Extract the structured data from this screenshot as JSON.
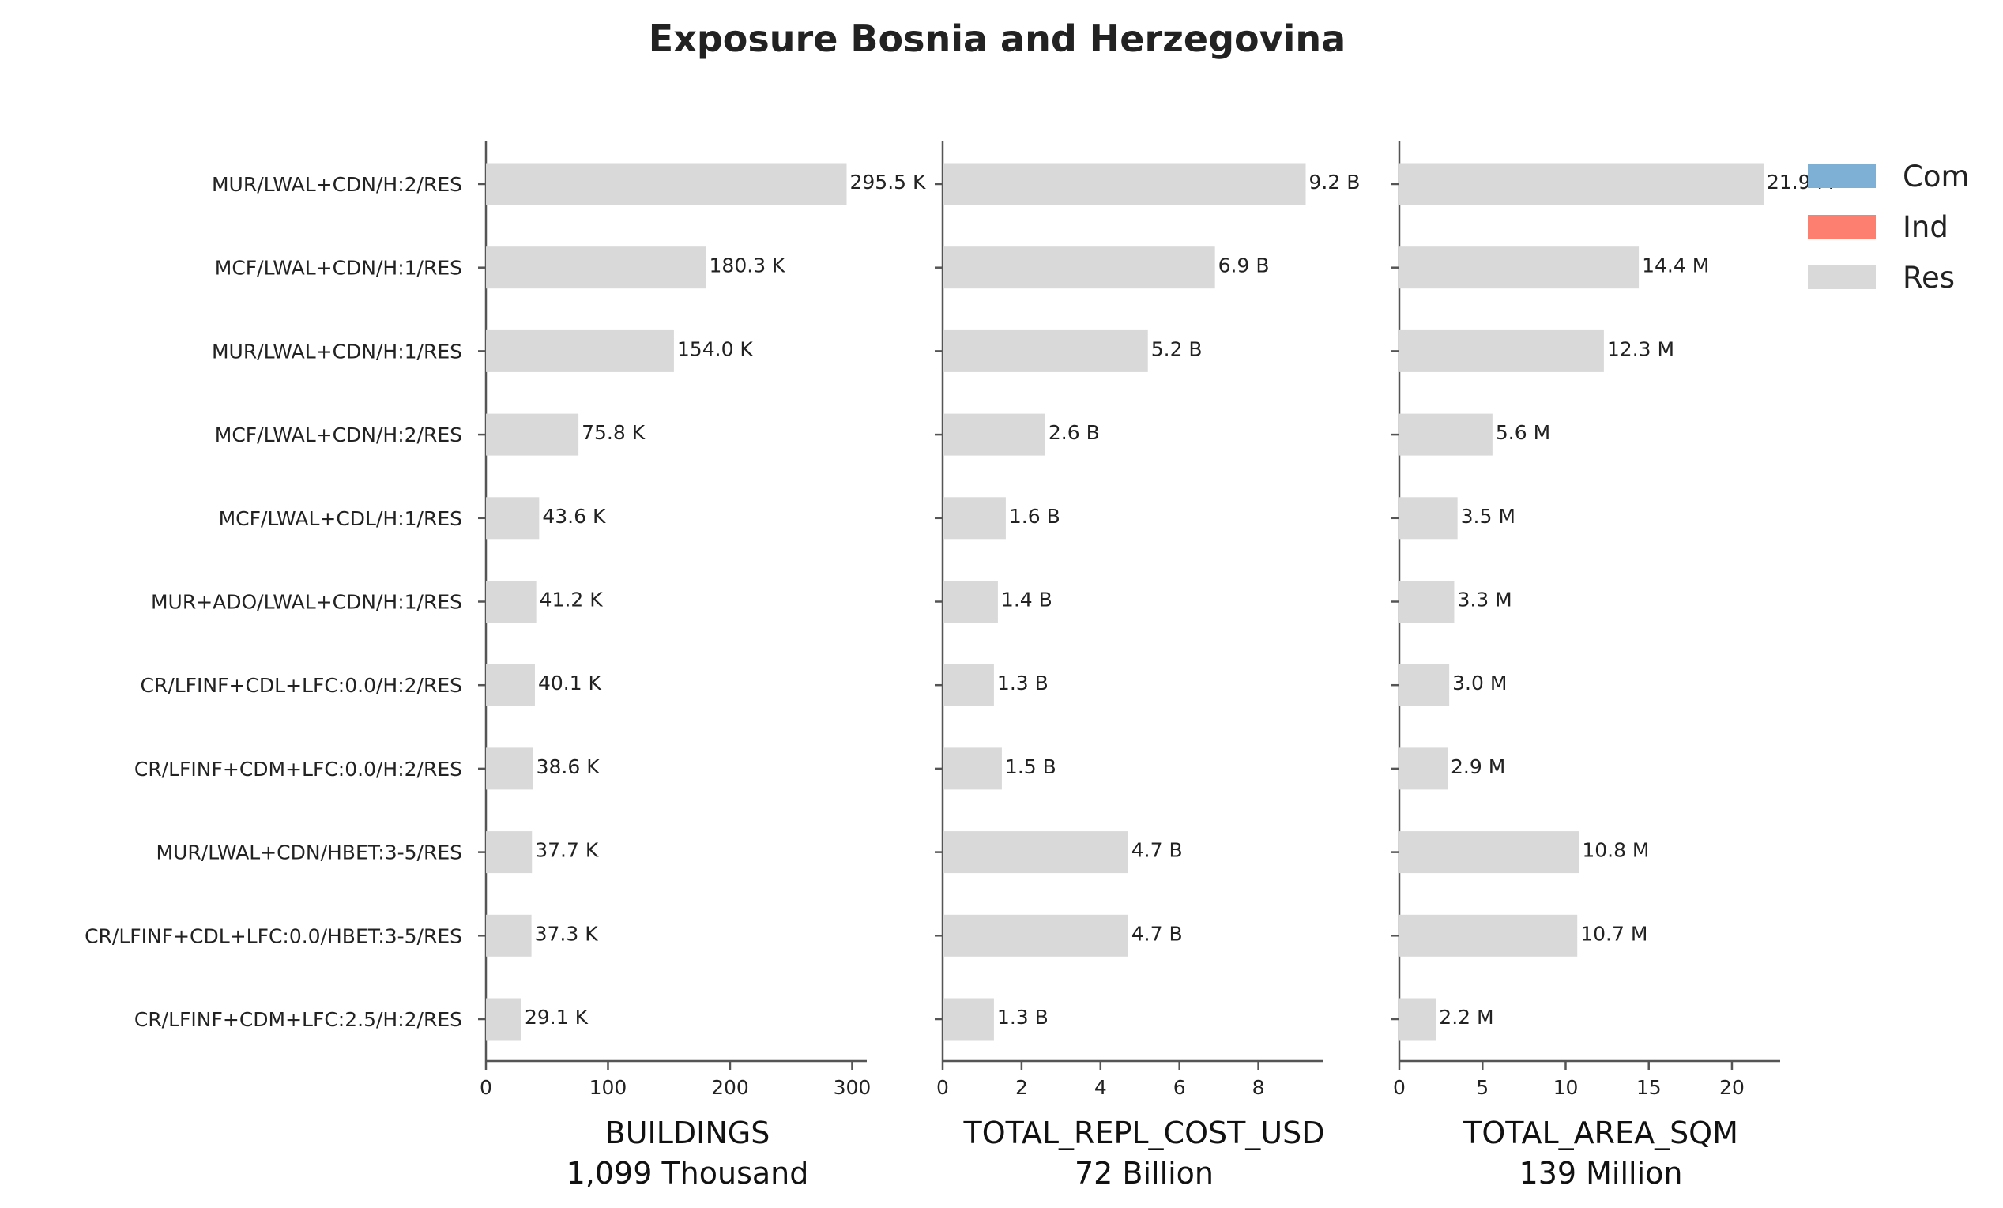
{
  "chart_data": {
    "type": "bar",
    "orientation": "horizontal",
    "title": "Exposure Bosnia and Herzegovina",
    "categories": [
      "MUR/LWAL+CDN/H:2/RES",
      "MCF/LWAL+CDN/H:1/RES",
      "MUR/LWAL+CDN/H:1/RES",
      "MCF/LWAL+CDN/H:2/RES",
      "MCF/LWAL+CDL/H:1/RES",
      "MUR+ADO/LWAL+CDN/H:1/RES",
      "CR/LFINF+CDL+LFC:0.0/H:2/RES",
      "CR/LFINF+CDM+LFC:0.0/H:2/RES",
      "MUR/LWAL+CDN/HBET:3-5/RES",
      "CR/LFINF+CDL+LFC:0.0/HBET:3-5/RES",
      "CR/LFINF+CDM+LFC:2.5/H:2/RES"
    ],
    "legend": {
      "placement": "top-right",
      "entries": [
        {
          "name": "Com",
          "color": "#7eb0d5"
        },
        {
          "name": "Ind",
          "color": "#fd7f6f"
        },
        {
          "name": "Res",
          "color": "#d9d9d9"
        }
      ]
    },
    "panels": [
      {
        "xlabel": "BUILDINGS",
        "total_label": "1,099 Thousand",
        "xlim": [
          0,
          312
        ],
        "ticks": [
          0,
          100,
          200,
          300
        ],
        "series": [
          {
            "name": "Res",
            "values": [
              295.5,
              180.3,
              154.0,
              75.8,
              43.6,
              41.2,
              40.1,
              38.6,
              37.7,
              37.3,
              29.1
            ]
          }
        ],
        "value_labels": [
          "295.5 K",
          "180.3 K",
          "154.0 K",
          "75.8 K",
          "43.6 K",
          "41.2 K",
          "40.1 K",
          "38.6 K",
          "37.7 K",
          "37.3 K",
          "29.1 K"
        ]
      },
      {
        "xlabel": "TOTAL_REPL_COST_USD",
        "total_label": "72 Billion",
        "xlim": [
          0,
          9.65
        ],
        "ticks": [
          0,
          2,
          4,
          6,
          8
        ],
        "series": [
          {
            "name": "Res",
            "values": [
              9.2,
              6.9,
              5.2,
              2.6,
              1.6,
              1.4,
              1.3,
              1.5,
              4.7,
              4.7,
              1.3
            ]
          }
        ],
        "value_labels": [
          "9.2 B",
          "6.9 B",
          "5.2 B",
          "2.6 B",
          "1.6 B",
          "1.4 B",
          "1.3 B",
          "1.5 B",
          "4.7 B",
          "4.7 B",
          "1.3 B"
        ]
      },
      {
        "xlabel": "TOTAL_AREA_SQM",
        "total_label": "139 Million",
        "xlim": [
          0,
          22.9
        ],
        "ticks": [
          0,
          5,
          10,
          15,
          20
        ],
        "series": [
          {
            "name": "Res",
            "values": [
              21.9,
              14.4,
              12.3,
              5.6,
              3.5,
              3.3,
              3.0,
              2.9,
              10.8,
              10.7,
              2.2
            ]
          }
        ],
        "value_labels": [
          "21.9 M",
          "14.4 M",
          "12.3 M",
          "5.6 M",
          "3.5 M",
          "3.3 M",
          "3.0 M",
          "2.9 M",
          "10.8 M",
          "10.7 M",
          "2.2 M"
        ]
      }
    ]
  }
}
